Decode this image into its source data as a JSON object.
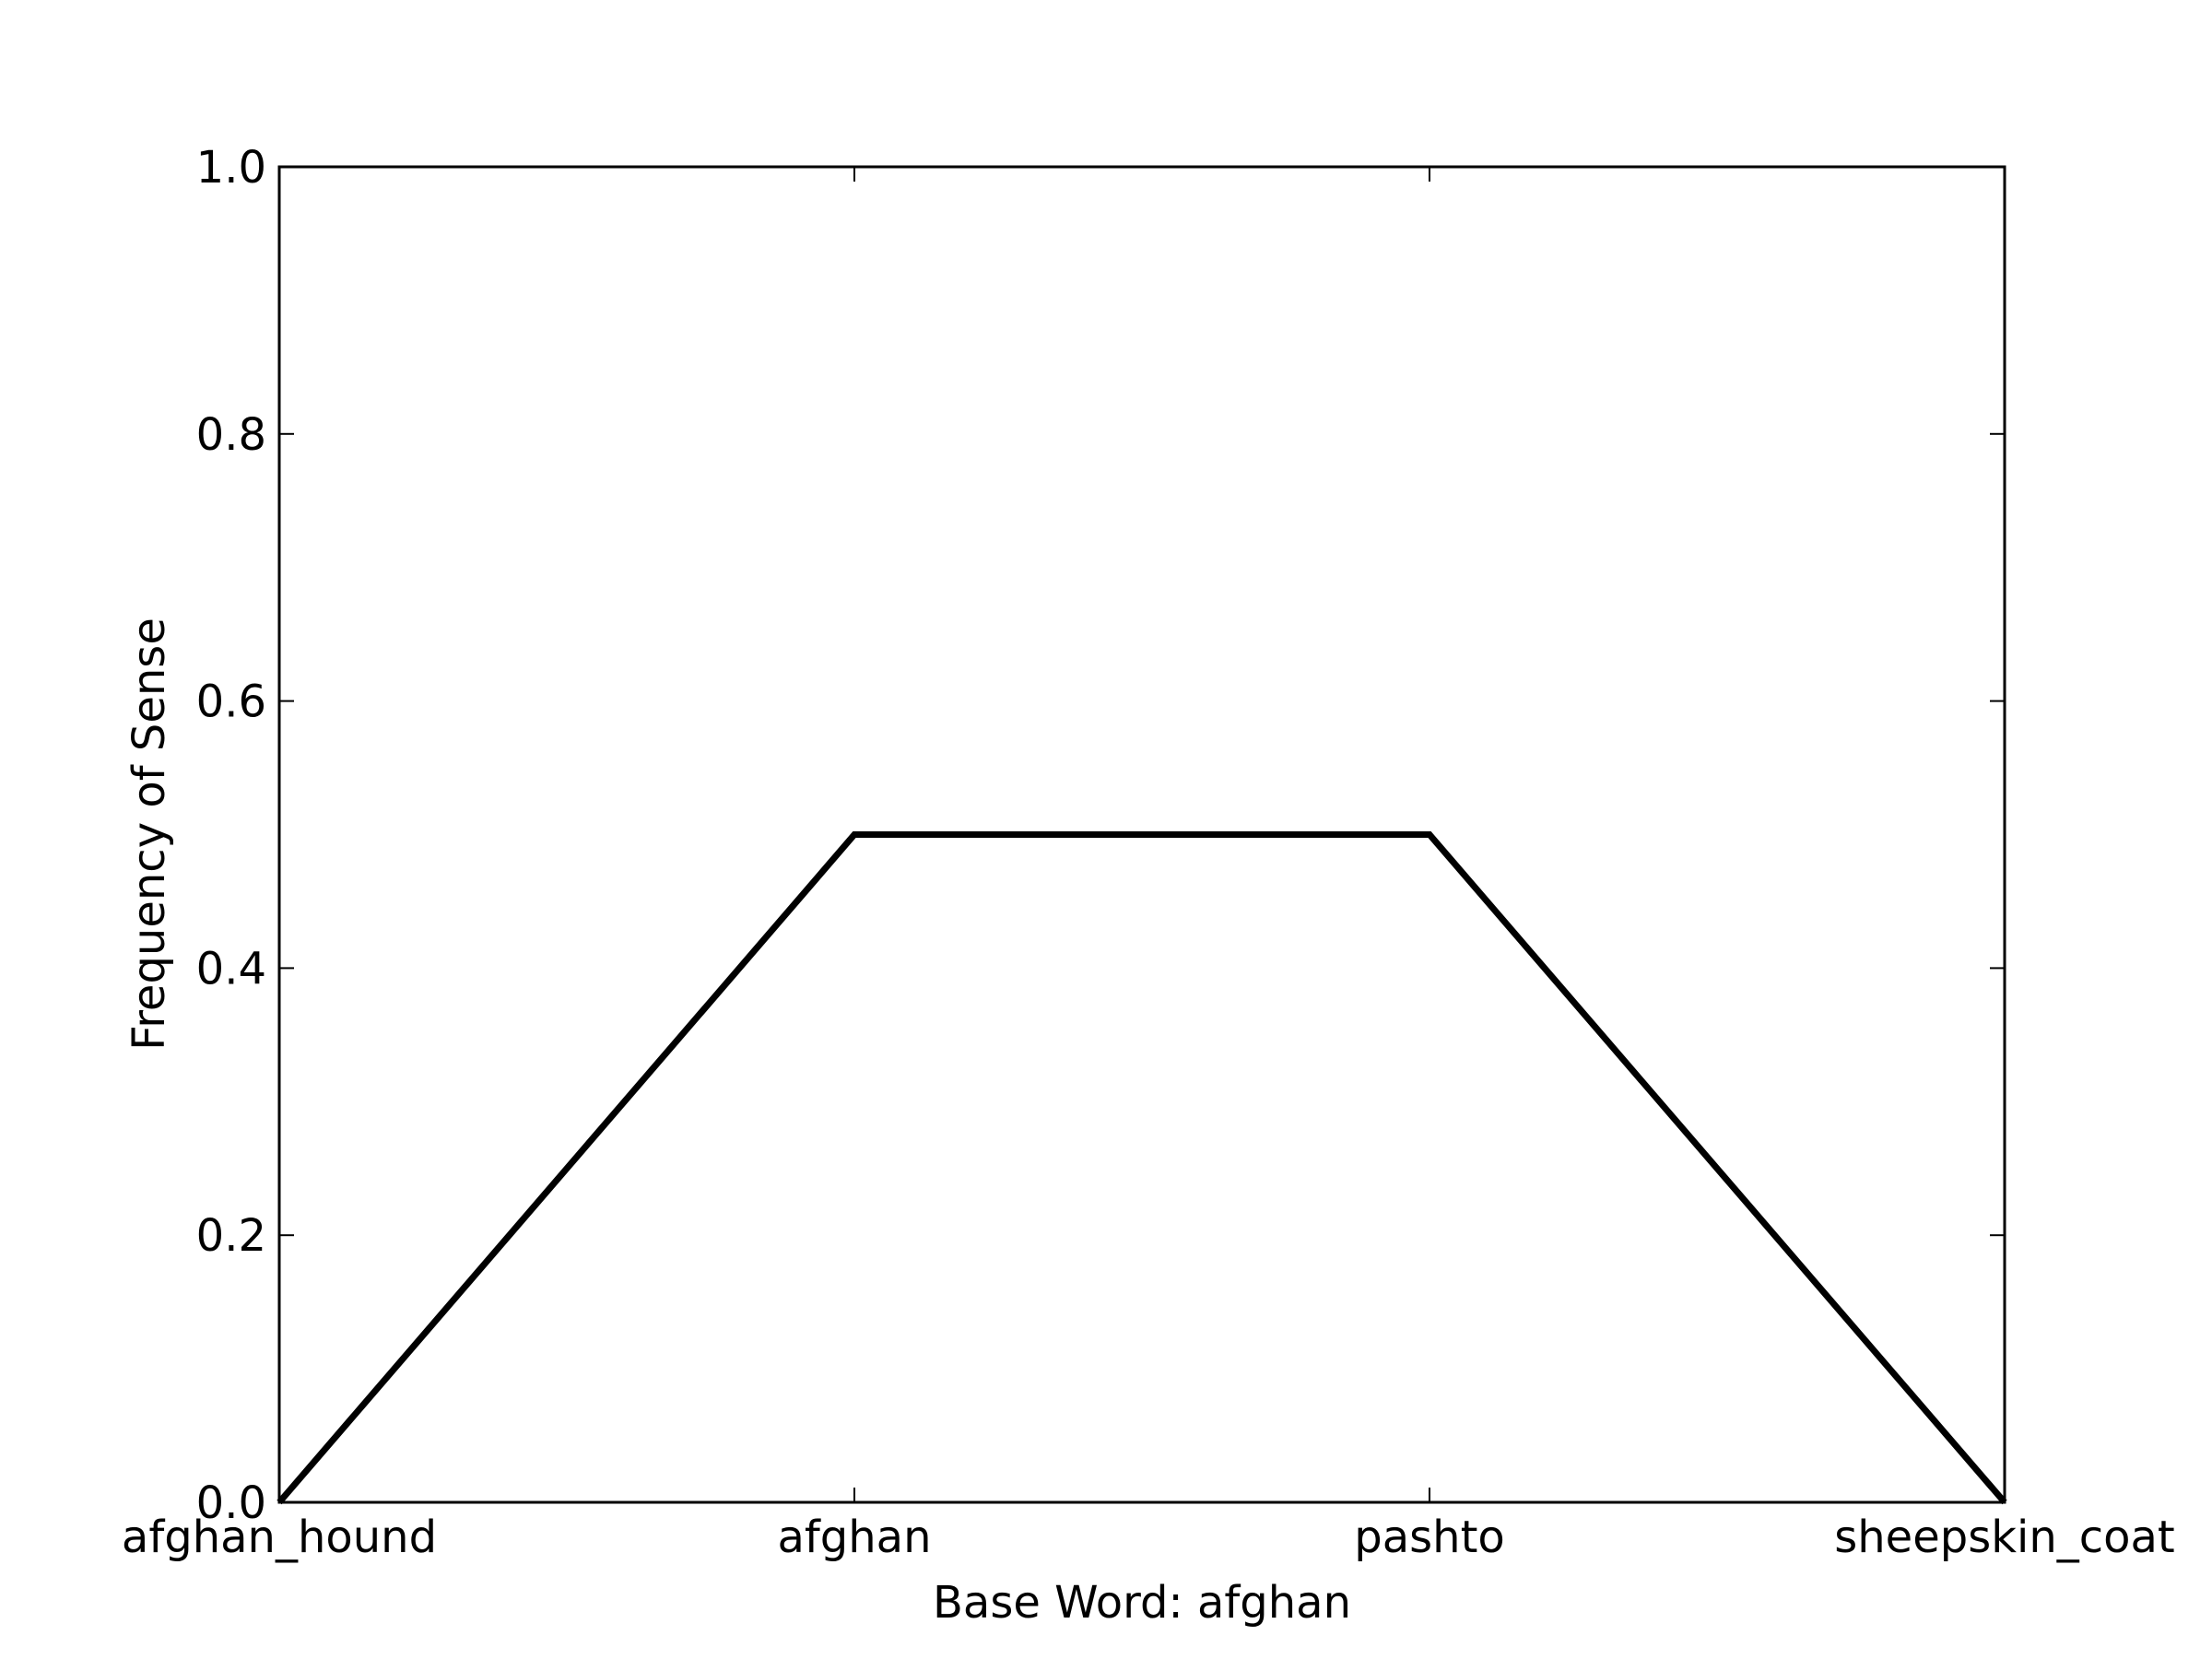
{
  "chart_data": {
    "type": "line",
    "title": "",
    "xlabel": "Base Word: afghan",
    "ylabel": "Frequency of Sense",
    "categories": [
      "afghan_hound",
      "afghan",
      "pashto",
      "sheepskin_coat"
    ],
    "series": [
      {
        "values": [
          0.0,
          0.5,
          0.5,
          0.0
        ]
      }
    ],
    "ylim": [
      0.0,
      1.0
    ],
    "yticks": [
      "0.0",
      "0.2",
      "0.4",
      "0.6",
      "0.8",
      "1.0"
    ],
    "grid": false,
    "line_color": "#000000"
  }
}
